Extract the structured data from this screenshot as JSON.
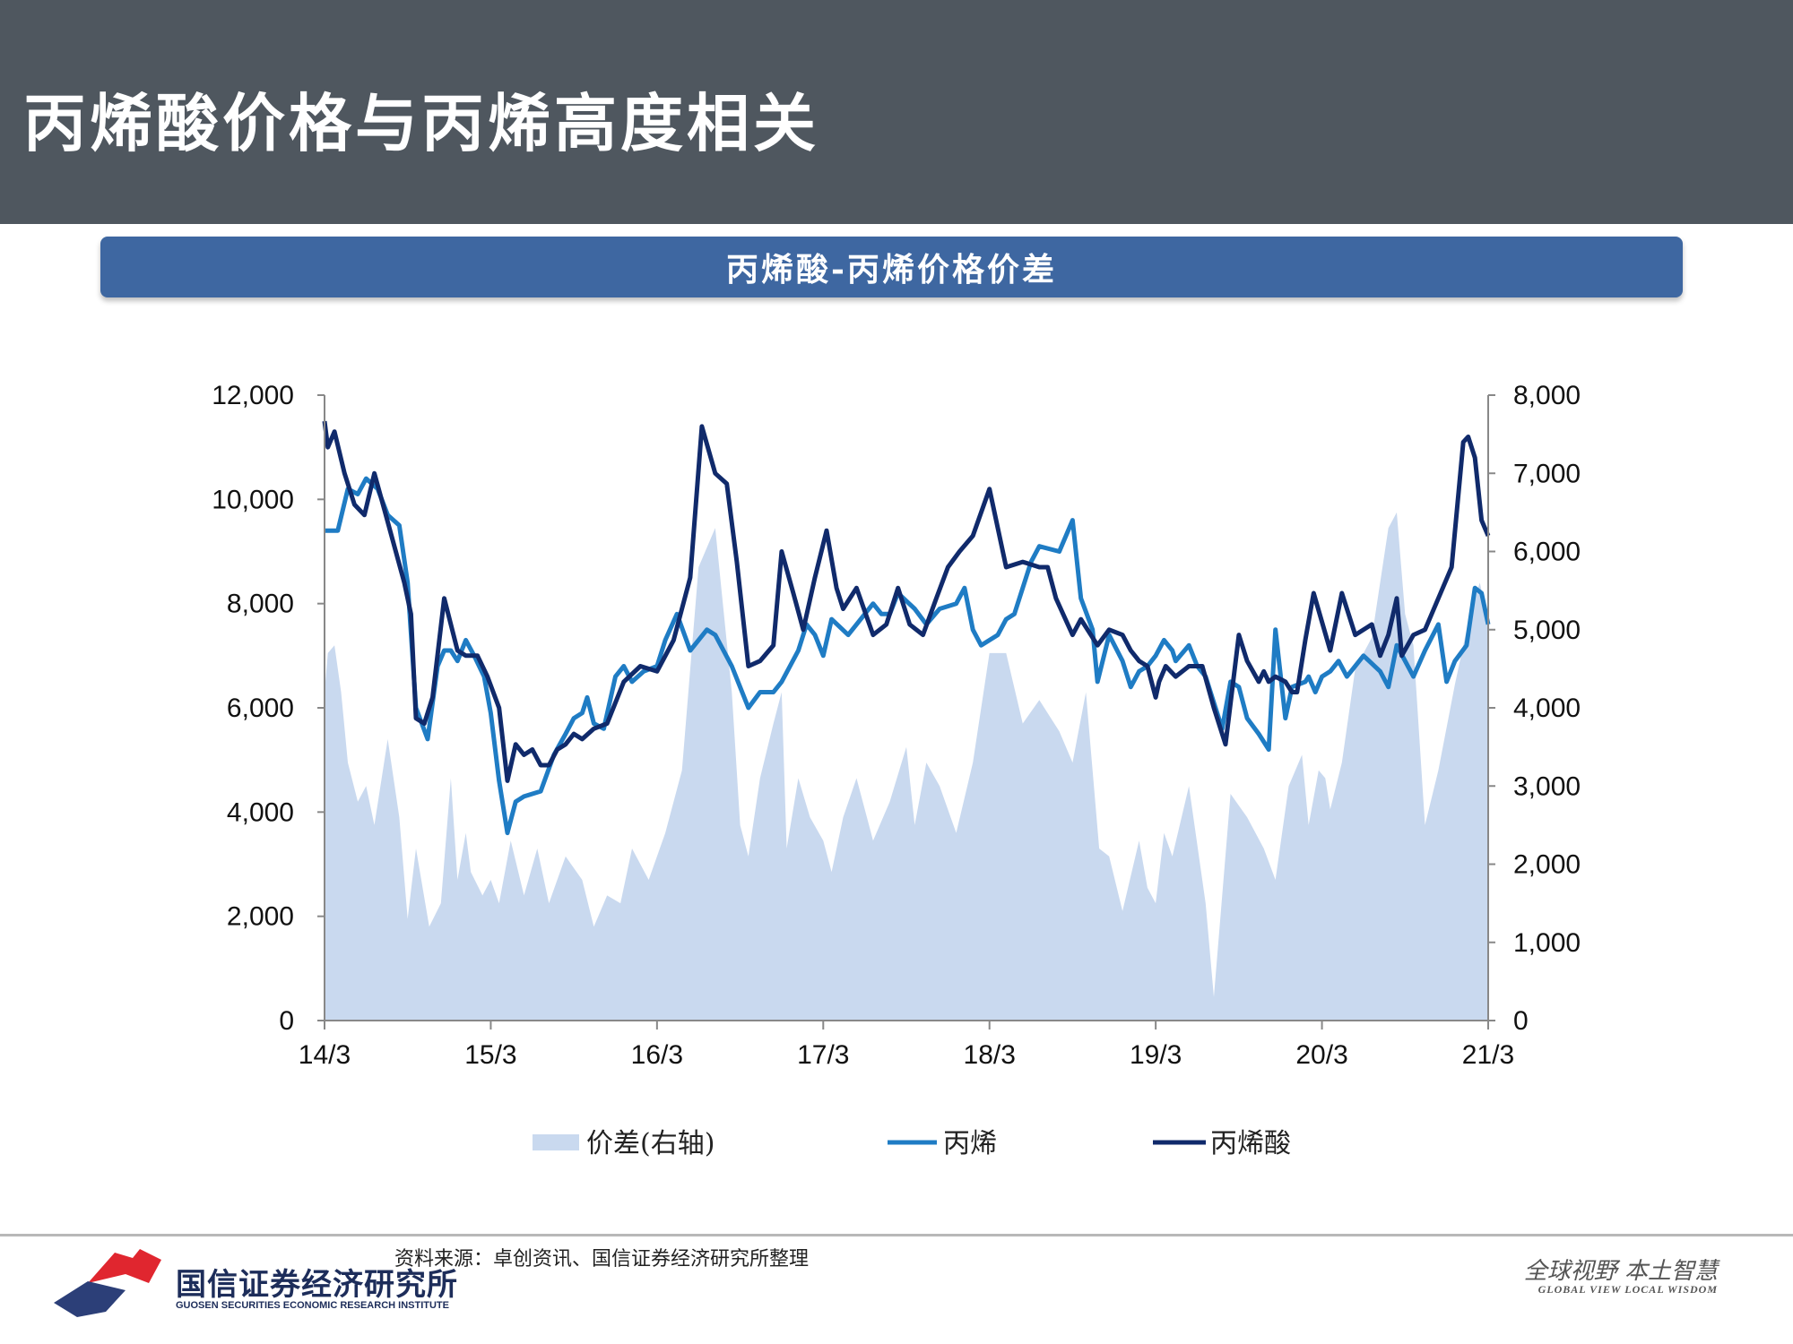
{
  "page": {
    "title": "丙烯酸价格与丙烯高度相关",
    "source": "资料来源：卓创资讯、国信证券经济研究所整理"
  },
  "branding": {
    "name": "国信证券经济研究所",
    "sub": "GUOSEN SECURITIES ECONOMIC RESEARCH INSTITUTE",
    "slogan": "全球视野  本土智慧",
    "slogan_en": "GLOBAL VIEW   LOCAL WISDOM"
  },
  "colors": {
    "header": "#4f575f",
    "banner": "#3e67a1",
    "spread": "#c9d9ef",
    "propylene": "#1f7cc4",
    "acrylic_acid": "#102a6b",
    "logo_red": "#e0262f",
    "logo_navy": "#2c3f78"
  },
  "chart_data": {
    "type": "area+line",
    "title": "丙烯酸-丙烯价格价差",
    "x_ticks": [
      "14/3",
      "15/3",
      "16/3",
      "17/3",
      "18/3",
      "19/3",
      "20/3",
      "21/3"
    ],
    "x_unit": "years since 14/3",
    "y_left": {
      "min": 0,
      "max": 12000,
      "ticks": [
        "0",
        "2,000",
        "4,000",
        "6,000",
        "8,000",
        "10,000",
        "12,000"
      ]
    },
    "y_right": {
      "min": 0,
      "max": 8000,
      "ticks": [
        "0",
        "1,000",
        "2,000",
        "3,000",
        "4,000",
        "5,000",
        "6,000",
        "7,000",
        "8,000"
      ]
    },
    "legend": [
      "价差(右轴)",
      "丙烯",
      "丙烯酸"
    ],
    "series": [
      {
        "name": "价差(右轴)",
        "type": "area",
        "axis": "right",
        "x": [
          0,
          0.02,
          0.06,
          0.1,
          0.14,
          0.2,
          0.25,
          0.3,
          0.38,
          0.45,
          0.5,
          0.55,
          0.63,
          0.7,
          0.76,
          0.8,
          0.85,
          0.88,
          0.95,
          1.0,
          1.05,
          1.12,
          1.2,
          1.28,
          1.35,
          1.45,
          1.55,
          1.62,
          1.7,
          1.78,
          1.85,
          1.95,
          2.05,
          2.15,
          2.25,
          2.35,
          2.45,
          2.5,
          2.55,
          2.62,
          2.7,
          2.75,
          2.78,
          2.85,
          2.92,
          3.0,
          3.05,
          3.12,
          3.2,
          3.3,
          3.4,
          3.5,
          3.55,
          3.62,
          3.7,
          3.8,
          3.9,
          4.0,
          4.1,
          4.2,
          4.3,
          4.42,
          4.5,
          4.58,
          4.62,
          4.66,
          4.72,
          4.8,
          4.9,
          4.95,
          5.0,
          5.05,
          5.1,
          5.2,
          5.3,
          5.35,
          5.45,
          5.55,
          5.65,
          5.72,
          5.8,
          5.88,
          5.92,
          5.98,
          6.02,
          6.05,
          6.12,
          6.2,
          6.3,
          6.4,
          6.45,
          6.5,
          6.55,
          6.62,
          6.7,
          6.8,
          6.9,
          6.95,
          7.0
        ],
        "y": [
          4200,
          4700,
          4800,
          4200,
          3300,
          2800,
          3000,
          2500,
          3600,
          2600,
          1300,
          2200,
          1200,
          1500,
          3100,
          1800,
          2400,
          1900,
          1600,
          1800,
          1500,
          2300,
          1600,
          2200,
          1500,
          2100,
          1800,
          1200,
          1600,
          1500,
          2200,
          1800,
          2400,
          3200,
          5800,
          6300,
          4200,
          2500,
          2100,
          3100,
          3800,
          4200,
          2200,
          3100,
          2600,
          2300,
          1900,
          2600,
          3100,
          2300,
          2800,
          3500,
          2500,
          3300,
          3000,
          2400,
          3300,
          4700,
          4700,
          3800,
          4100,
          3700,
          3300,
          4200,
          3200,
          2200,
          2100,
          1400,
          2300,
          1700,
          1500,
          2400,
          2100,
          3000,
          1500,
          300,
          2900,
          2600,
          2200,
          1800,
          3000,
          3400,
          2500,
          3200,
          3100,
          2700,
          3300,
          4500,
          4900,
          6300,
          6500,
          5200,
          4800,
          2500,
          3200,
          4300,
          5300,
          5600,
          5100
        ]
      },
      {
        "name": "丙烯",
        "type": "line",
        "axis": "left",
        "x": [
          0,
          0.08,
          0.14,
          0.2,
          0.25,
          0.32,
          0.38,
          0.45,
          0.5,
          0.55,
          0.62,
          0.68,
          0.72,
          0.76,
          0.8,
          0.85,
          0.9,
          0.96,
          1.0,
          1.05,
          1.1,
          1.15,
          1.2,
          1.3,
          1.38,
          1.45,
          1.5,
          1.55,
          1.58,
          1.62,
          1.68,
          1.75,
          1.8,
          1.85,
          1.92,
          2.0,
          2.05,
          2.12,
          2.2,
          2.25,
          2.3,
          2.35,
          2.45,
          2.55,
          2.62,
          2.7,
          2.75,
          2.85,
          2.9,
          2.95,
          3.0,
          3.05,
          3.15,
          3.2,
          3.3,
          3.35,
          3.4,
          3.45,
          3.55,
          3.62,
          3.7,
          3.8,
          3.85,
          3.9,
          3.95,
          4.05,
          4.1,
          4.15,
          4.25,
          4.3,
          4.42,
          4.5,
          4.55,
          4.62,
          4.65,
          4.72,
          4.8,
          4.85,
          4.9,
          4.95,
          5.0,
          5.05,
          5.1,
          5.12,
          5.2,
          5.25,
          5.3,
          5.35,
          5.4,
          5.45,
          5.5,
          5.55,
          5.62,
          5.68,
          5.72,
          5.78,
          5.82,
          5.9,
          5.92,
          5.96,
          6.0,
          6.05,
          6.1,
          6.15,
          6.25,
          6.35,
          6.4,
          6.45,
          6.55,
          6.62,
          6.7,
          6.75,
          6.8,
          6.87,
          6.92,
          6.96,
          7.0
        ],
        "y": [
          9400,
          9400,
          10200,
          10100,
          10400,
          10200,
          9700,
          9500,
          8400,
          6000,
          5400,
          6800,
          7100,
          7100,
          6900,
          7300,
          7000,
          6600,
          5900,
          4600,
          3600,
          4200,
          4300,
          4400,
          5100,
          5500,
          5800,
          5900,
          6200,
          5700,
          5600,
          6600,
          6800,
          6500,
          6700,
          6800,
          7300,
          7800,
          7100,
          7300,
          7500,
          7400,
          6800,
          6000,
          6300,
          6300,
          6500,
          7100,
          7600,
          7400,
          7000,
          7700,
          7400,
          7600,
          8000,
          7800,
          7800,
          8200,
          7900,
          7600,
          7900,
          8000,
          8300,
          7500,
          7200,
          7400,
          7700,
          7800,
          8800,
          9100,
          9000,
          9600,
          8100,
          7500,
          6500,
          7400,
          6900,
          6400,
          6700,
          6800,
          7000,
          7300,
          7100,
          6900,
          7200,
          6800,
          6600,
          6100,
          5600,
          6500,
          6400,
          5800,
          5500,
          5200,
          7500,
          5800,
          6400,
          6500,
          6600,
          6300,
          6600,
          6700,
          6900,
          6600,
          7000,
          6700,
          6400,
          7200,
          6600,
          7100,
          7600,
          6500,
          6900,
          7200,
          8300,
          8200,
          7600
        ]
      },
      {
        "name": "丙烯酸",
        "type": "line",
        "axis": "left",
        "x": [
          0,
          0.02,
          0.06,
          0.12,
          0.18,
          0.24,
          0.3,
          0.36,
          0.42,
          0.48,
          0.52,
          0.55,
          0.6,
          0.65,
          0.72,
          0.8,
          0.85,
          0.92,
          0.98,
          1.05,
          1.1,
          1.15,
          1.2,
          1.25,
          1.3,
          1.35,
          1.4,
          1.45,
          1.5,
          1.55,
          1.62,
          1.7,
          1.8,
          1.9,
          2.0,
          2.1,
          2.2,
          2.27,
          2.35,
          2.42,
          2.48,
          2.55,
          2.62,
          2.7,
          2.75,
          2.82,
          2.88,
          2.95,
          3.02,
          3.08,
          3.12,
          3.2,
          3.3,
          3.38,
          3.45,
          3.52,
          3.6,
          3.68,
          3.75,
          3.82,
          3.9,
          4.0,
          4.1,
          4.2,
          4.3,
          4.35,
          4.4,
          4.5,
          4.55,
          4.65,
          4.72,
          4.8,
          4.85,
          4.9,
          4.95,
          5.0,
          5.02,
          5.06,
          5.12,
          5.2,
          5.28,
          5.35,
          5.42,
          5.5,
          5.55,
          5.62,
          5.65,
          5.68,
          5.72,
          5.78,
          5.82,
          5.85,
          5.9,
          5.95,
          6.05,
          6.12,
          6.2,
          6.3,
          6.35,
          6.4,
          6.45,
          6.48,
          6.55,
          6.62,
          6.7,
          6.78,
          6.85,
          6.88,
          6.92,
          6.96,
          7.0
        ],
        "y": [
          11500,
          11000,
          11300,
          10500,
          9900,
          9700,
          10500,
          9800,
          9100,
          8400,
          7800,
          5800,
          5700,
          6200,
          8100,
          7100,
          7000,
          7000,
          6600,
          6000,
          4600,
          5300,
          5100,
          5200,
          4900,
          4900,
          5200,
          5300,
          5500,
          5400,
          5600,
          5700,
          6500,
          6800,
          6700,
          7300,
          8500,
          11400,
          10500,
          10300,
          8800,
          6800,
          6900,
          7200,
          9000,
          8200,
          7500,
          8500,
          9400,
          8300,
          7900,
          8300,
          7400,
          7600,
          8300,
          7600,
          7400,
          8100,
          8700,
          9000,
          9300,
          10200,
          8700,
          8800,
          8700,
          8700,
          8100,
          7400,
          7700,
          7200,
          7500,
          7400,
          7100,
          6900,
          6800,
          6200,
          6500,
          6800,
          6600,
          6800,
          6800,
          6000,
          5300,
          7400,
          6900,
          6500,
          6700,
          6500,
          6600,
          6500,
          6300,
          6300,
          7300,
          8200,
          7100,
          8200,
          7400,
          7600,
          7000,
          7400,
          8100,
          7000,
          7400,
          7500,
          8100,
          8700,
          11100,
          11200,
          10800,
          9600,
          9300
        ]
      }
    ]
  }
}
